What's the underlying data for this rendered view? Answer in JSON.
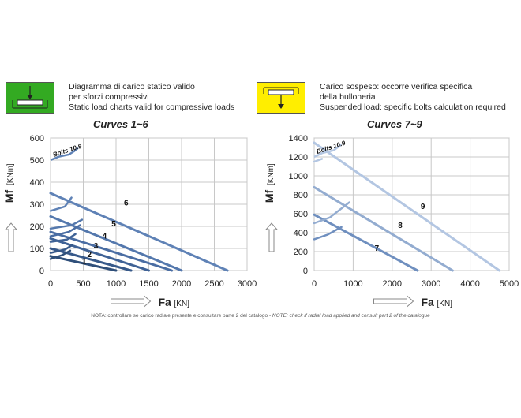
{
  "legends": [
    {
      "color": "#33aa22",
      "lines": [
        "Diagramma di carico statico valido",
        "per sforzi compressivi",
        "Static load charts valid for compressive loads"
      ]
    },
    {
      "color": "#ffee00",
      "lines": [
        "Carico sospeso: occorre verifica specifica",
        "della bulloneria",
        "Suspended load:  specific bolts calculation required"
      ]
    }
  ],
  "note": {
    "text": "NOTA: controllare se carico radiale presente e consultare parte 2 del catalogo - ",
    "italic": "NOTE: check if radial load applied and consult part 2 of the catalogue"
  },
  "chart_data": [
    {
      "type": "line",
      "title": "Curves 1~6",
      "xlabel": "Fa",
      "xunit": "[KN]",
      "ylabel": "Mf",
      "yunit": "[KNm]",
      "xlim": [
        0,
        3000
      ],
      "ylim": [
        0,
        600
      ],
      "xticks": [
        "0",
        "500",
        "1000",
        "1500",
        "2000",
        "2500",
        "3000"
      ],
      "yticks": [
        "0",
        "100",
        "200",
        "300",
        "400",
        "500",
        "600"
      ],
      "grid": true,
      "bolts_label": "Bolts 10.9",
      "bolts_curve": [
        [
          0,
          500
        ],
        [
          120,
          515
        ],
        [
          280,
          525
        ],
        [
          360,
          540
        ],
        [
          420,
          555
        ]
      ],
      "series": [
        {
          "name": "1",
          "color": "#2f4f7a",
          "points": [
            [
              0,
              65
            ],
            [
              1000,
              0
            ]
          ],
          "label_at": [
            480,
            30
          ]
        },
        {
          "name": "2",
          "color": "#37598a",
          "points": [
            [
              0,
              100
            ],
            [
              1230,
              0
            ]
          ],
          "label_at": [
            560,
            60
          ]
        },
        {
          "name": "3",
          "color": "#3f6296",
          "points": [
            [
              0,
              145
            ],
            [
              1500,
              0
            ]
          ],
          "label_at": [
            660,
            100
          ]
        },
        {
          "name": "4",
          "color": "#4a6da3",
          "points": [
            [
              0,
              175
            ],
            [
              1850,
              0
            ]
          ],
          "label_at": [
            790,
            145
          ]
        },
        {
          "name": "5",
          "color": "#5478ad",
          "points": [
            [
              0,
              245
            ],
            [
              2000,
              0
            ]
          ],
          "label_at": [
            930,
            200
          ]
        },
        {
          "name": "6",
          "color": "#5f82b6",
          "points": [
            [
              0,
              350
            ],
            [
              2700,
              0
            ]
          ],
          "label_at": [
            1120,
            295
          ]
        }
      ],
      "bolt_limits": [
        {
          "series": "1",
          "points": [
            [
              0,
              52
            ],
            [
              180,
              70
            ],
            [
              300,
              90
            ]
          ]
        },
        {
          "series": "2",
          "points": [
            [
              0,
              80
            ],
            [
              220,
              95
            ],
            [
              330,
              115
            ]
          ]
        },
        {
          "series": "3",
          "points": [
            [
              0,
              130
            ],
            [
              250,
              140
            ],
            [
              380,
              165
            ]
          ]
        },
        {
          "series": "4",
          "points": [
            [
              0,
              155
            ],
            [
              280,
              175
            ],
            [
              450,
              205
            ]
          ]
        },
        {
          "series": "5",
          "points": [
            [
              0,
              190
            ],
            [
              320,
              205
            ],
            [
              480,
              230
            ]
          ]
        },
        {
          "series": "6",
          "points": [
            [
              0,
              270
            ],
            [
              220,
              290
            ],
            [
              320,
              330
            ]
          ]
        }
      ]
    },
    {
      "type": "line",
      "title": "Curves 7~9",
      "xlabel": "Fa",
      "xunit": "[KN]",
      "ylabel": "Mf",
      "yunit": "[KNm]",
      "xlim": [
        0,
        5000
      ],
      "ylim": [
        0,
        1400
      ],
      "xticks": [
        "0",
        "1000",
        "2000",
        "3000",
        "4000",
        "5000"
      ],
      "yticks": [
        "0",
        "200",
        "400",
        "600",
        "800",
        "1000",
        "1200",
        "1400"
      ],
      "grid": true,
      "bolts_label": "Bolts 10.9",
      "bolts_curve": [
        [
          0,
          1200
        ],
        [
          200,
          1240
        ],
        [
          500,
          1270
        ],
        [
          700,
          1330
        ]
      ],
      "series": [
        {
          "name": "7",
          "color": "#6f8fbf",
          "points": [
            [
              0,
              590
            ],
            [
              2650,
              0
            ]
          ],
          "label_at": [
            1550,
            210
          ]
        },
        {
          "name": "8",
          "color": "#93acd0",
          "points": [
            [
              0,
              880
            ],
            [
              3550,
              0
            ]
          ],
          "label_at": [
            2150,
            450
          ]
        },
        {
          "name": "9",
          "color": "#b3c6e2",
          "points": [
            [
              0,
              1350
            ],
            [
              4750,
              0
            ]
          ],
          "label_at": [
            2730,
            650
          ]
        }
      ],
      "bolt_limits": [
        {
          "series": "7",
          "points": [
            [
              0,
              330
            ],
            [
              350,
              380
            ],
            [
              700,
              460
            ]
          ]
        },
        {
          "series": "8",
          "points": [
            [
              0,
              500
            ],
            [
              400,
              560
            ],
            [
              900,
              720
            ]
          ]
        },
        {
          "series": "9",
          "points": [
            [
              0,
              1150
            ],
            [
              200,
              1180
            ]
          ]
        }
      ]
    }
  ]
}
